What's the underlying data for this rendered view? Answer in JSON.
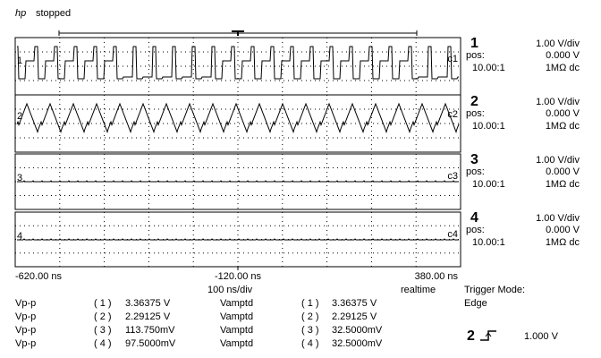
{
  "header": {
    "brand": "hp",
    "status": "stopped"
  },
  "channels": [
    {
      "number": "1",
      "scale": "1.00  V/div",
      "pos_label": "pos:",
      "pos": "0.000  V",
      "probe": "10.00:1",
      "coupling": "1MΩ dc",
      "ground": "1",
      "marker": "c1"
    },
    {
      "number": "2",
      "scale": "1.00  V/div",
      "pos_label": "pos:",
      "pos": "0.000  V",
      "probe": "10.00:1",
      "coupling": "1MΩ dc",
      "ground": "2",
      "marker": "c2"
    },
    {
      "number": "3",
      "scale": "1.00  V/div",
      "pos_label": "pos:",
      "pos": "0.000  V",
      "probe": "10.00:1",
      "coupling": "1MΩ dc",
      "ground": "3",
      "marker": "c3"
    },
    {
      "number": "4",
      "scale": "1.00  V/div",
      "pos_label": "pos:",
      "pos": "0.000  V",
      "probe": "10.00:1",
      "coupling": "1MΩ dc",
      "ground": "4",
      "marker": "c4"
    }
  ],
  "timebase": {
    "left": "-620.00 ns",
    "center": "-120.00 ns",
    "right": "380.00 ns",
    "scale": "100  ns/div",
    "mode": "realtime"
  },
  "trigger": {
    "label": "Trigger Mode:",
    "mode": "Edge",
    "channel": "2",
    "level": "1.000  V"
  },
  "measurements": [
    [
      "Vp-p",
      "( 1 )",
      "3.36375 V",
      "Vamptd",
      "( 1 )",
      "3.36375 V"
    ],
    [
      "Vp-p",
      "( 2 )",
      "2.29125 V",
      "Vamptd",
      "( 2 )",
      "2.29125 V"
    ],
    [
      "Vp-p",
      "( 3 )",
      "113.750mV",
      "Vamptd",
      "( 3 )",
      "32.5000mV"
    ],
    [
      "Vp-p",
      "( 4 )",
      "97.5000mV",
      "Vamptd",
      "( 4 )",
      "32.5000mV"
    ]
  ]
}
